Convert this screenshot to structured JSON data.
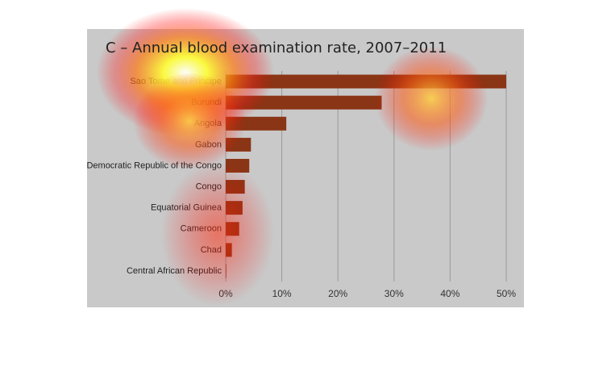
{
  "chart_data": {
    "type": "bar",
    "orientation": "horizontal",
    "title": "C – Annual blood examination rate, 2007–2011",
    "categories": [
      "Sao Tome and Principe",
      "Burundi",
      "Angola",
      "Gabon",
      "Democratic Republic of the Congo",
      "Congo",
      "Equatorial Guinea",
      "Cameroon",
      "Chad",
      "Central African Republic"
    ],
    "values": [
      50,
      27.8,
      10.8,
      4.5,
      4.2,
      3.4,
      3.0,
      2.4,
      1.1,
      0.1
    ],
    "color": "#8a3515",
    "xlim": [
      0,
      50
    ],
    "xticks": [
      {
        "value": 0,
        "label": "0%"
      },
      {
        "value": 10,
        "label": "10%"
      },
      {
        "value": 20,
        "label": "20%"
      },
      {
        "value": 30,
        "label": "30%"
      },
      {
        "value": 40,
        "label": "40%"
      },
      {
        "value": 50,
        "label": "50%"
      }
    ],
    "grid": true
  }
}
